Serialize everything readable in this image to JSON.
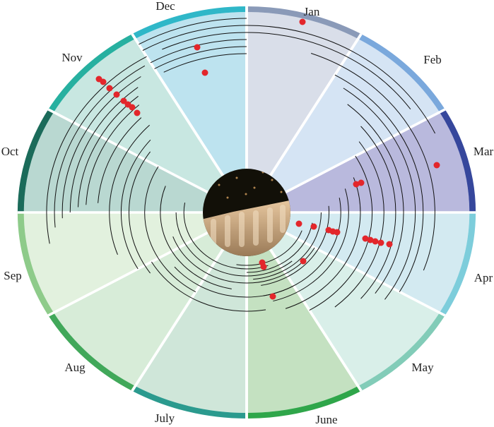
{
  "months": [
    "Jan",
    "Feb",
    "Mar",
    "Apr",
    "May",
    "June",
    "July",
    "Aug",
    "Sep",
    "Oct",
    "Nov",
    "Dec"
  ]
}
